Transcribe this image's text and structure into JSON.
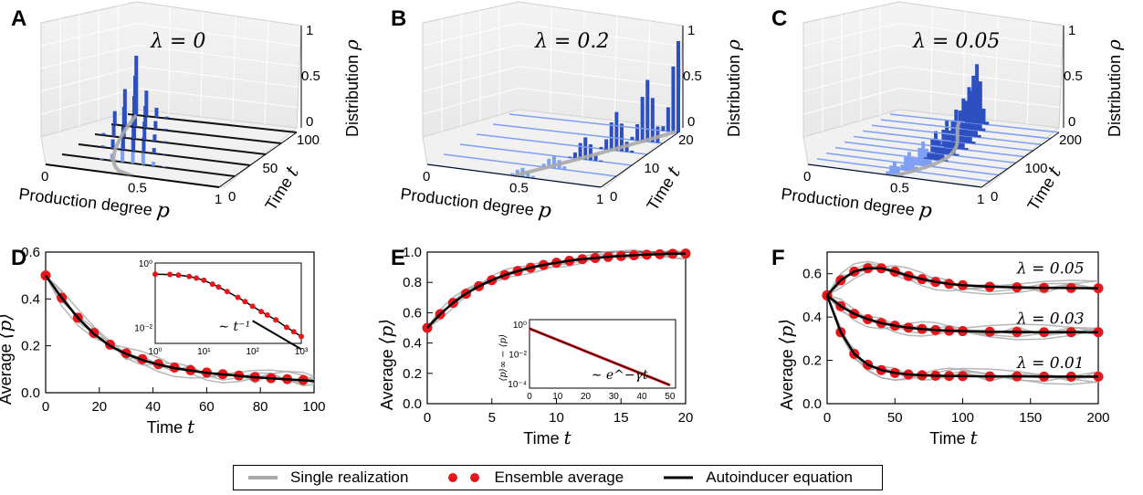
{
  "panels_3d": [
    {
      "letter": "A",
      "lambda_label": "λ = 0",
      "x_axis_label": "Production degree",
      "x_axis_symbol": "p",
      "time_axis_label": "Time",
      "time_axis_symbol": "t",
      "z_axis_label": "Distribution",
      "z_axis_symbol": "ρ",
      "x_ticks": [
        "0",
        "0.5",
        "1"
      ],
      "time_ticks": [
        "0",
        "50",
        "100"
      ],
      "z_ticks": [
        "0",
        "0.5",
        "1"
      ]
    },
    {
      "letter": "B",
      "lambda_label": "λ = 0.2",
      "x_axis_label": "Production degree",
      "x_axis_symbol": "p",
      "time_axis_label": "Time",
      "time_axis_symbol": "t",
      "z_axis_label": "Distribution",
      "z_axis_symbol": "ρ",
      "x_ticks": [
        "0",
        "0.5",
        "1"
      ],
      "time_ticks": [
        "0",
        "10",
        "20"
      ],
      "z_ticks": [
        "0",
        "0.5",
        "1"
      ]
    },
    {
      "letter": "C",
      "lambda_label": "λ = 0.05",
      "x_axis_label": "Production degree",
      "x_axis_symbol": "p",
      "time_axis_label": "Time",
      "time_axis_symbol": "t",
      "z_axis_label": "Distribution",
      "z_axis_symbol": "ρ",
      "x_ticks": [
        "0",
        "0.5",
        "1"
      ],
      "time_ticks": [
        "0",
        "100",
        "200"
      ],
      "z_ticks": [
        "0",
        "0.5",
        "1"
      ]
    }
  ],
  "chart_data": [
    {
      "panel": "D",
      "type": "line",
      "xlabel": "Time",
      "xlabel_symbol": "t",
      "ylabel": "Average",
      "ylabel_symbol": "⟨p⟩",
      "xlim": [
        0,
        100
      ],
      "ylim": [
        0.0,
        0.6
      ],
      "x_ticks": [
        "0",
        "20",
        "40",
        "60",
        "80",
        "100"
      ],
      "y_ticks": [
        "0.0",
        "0.2",
        "0.4",
        "0.6"
      ],
      "series": [
        {
          "name": "Autoinducer equation",
          "x": [
            0,
            6,
            12,
            18,
            24,
            30,
            36,
            42,
            48,
            54,
            60,
            66,
            72,
            78,
            84,
            90,
            96,
            100
          ],
          "y": [
            0.5,
            0.405,
            0.32,
            0.25,
            0.2,
            0.165,
            0.14,
            0.12,
            0.105,
            0.095,
            0.085,
            0.078,
            0.072,
            0.066,
            0.061,
            0.057,
            0.053,
            0.05
          ]
        },
        {
          "name": "Ensemble average",
          "x": [
            0,
            6,
            12,
            18,
            24,
            30,
            36,
            42,
            48,
            54,
            60,
            66,
            72,
            78,
            84,
            90,
            96
          ],
          "y": [
            0.5,
            0.405,
            0.32,
            0.255,
            0.205,
            0.168,
            0.143,
            0.122,
            0.107,
            0.096,
            0.086,
            0.079,
            0.073,
            0.067,
            0.062,
            0.058,
            0.054
          ]
        }
      ],
      "inset": {
        "x_ticks": [
          "10⁰",
          "10¹",
          "10²",
          "10³"
        ],
        "y_ticks": [
          "10⁰",
          "10⁻²"
        ],
        "annotation": "∼ t⁻¹",
        "x": [
          1,
          2,
          3,
          5,
          7,
          10,
          15,
          20,
          30,
          50,
          70,
          100,
          150,
          200,
          300,
          500,
          700,
          1000
        ],
        "y": [
          0.45,
          0.44,
          0.42,
          0.38,
          0.34,
          0.29,
          0.22,
          0.18,
          0.13,
          0.085,
          0.063,
          0.045,
          0.031,
          0.024,
          0.017,
          0.01,
          0.0073,
          0.0052
        ]
      }
    },
    {
      "panel": "E",
      "type": "line",
      "xlabel": "Time",
      "xlabel_symbol": "t",
      "ylabel": "Average",
      "ylabel_symbol": "⟨p⟩",
      "xlim": [
        0,
        20
      ],
      "ylim": [
        0.0,
        1.0
      ],
      "x_ticks": [
        "0",
        "5",
        "10",
        "15",
        "20"
      ],
      "y_ticks": [
        "0.0",
        "0.2",
        "0.4",
        "0.6",
        "0.8",
        "1.0"
      ],
      "series": [
        {
          "name": "Autoinducer equation",
          "x": [
            0,
            1,
            2,
            3,
            4,
            5,
            6,
            7,
            8,
            9,
            10,
            11,
            12,
            13,
            14,
            15,
            16,
            17,
            18,
            19,
            20
          ],
          "y": [
            0.5,
            0.59,
            0.665,
            0.725,
            0.775,
            0.815,
            0.848,
            0.875,
            0.897,
            0.915,
            0.93,
            0.943,
            0.953,
            0.961,
            0.968,
            0.974,
            0.979,
            0.983,
            0.986,
            0.989,
            0.99
          ]
        },
        {
          "name": "Ensemble average",
          "x": [
            0,
            1,
            2,
            3,
            4,
            5,
            6,
            7,
            8,
            9,
            10,
            11,
            12,
            13,
            14,
            15,
            16,
            17,
            18,
            19,
            20
          ],
          "y": [
            0.5,
            0.59,
            0.665,
            0.725,
            0.775,
            0.815,
            0.848,
            0.875,
            0.897,
            0.915,
            0.93,
            0.943,
            0.953,
            0.961,
            0.968,
            0.974,
            0.979,
            0.983,
            0.986,
            0.989,
            0.99
          ]
        }
      ],
      "inset": {
        "x_ticks": [
          "0",
          "10",
          "20",
          "30",
          "40",
          "50"
        ],
        "y_ticks": [
          "10⁰",
          "10⁻²",
          "10⁻⁴"
        ],
        "ylabel": "⟨p⟩∞ − ⟨p⟩",
        "annotation": "∼ e^−γt",
        "x": [
          0,
          5,
          10,
          15,
          20,
          25,
          30,
          35,
          40,
          45,
          50
        ],
        "log10y": [
          -0.3,
          -0.68,
          -1.06,
          -1.44,
          -1.82,
          -2.2,
          -2.58,
          -2.96,
          -3.34,
          -3.72,
          -4.1
        ]
      }
    },
    {
      "panel": "F",
      "type": "line",
      "xlabel": "Time",
      "xlabel_symbol": "t",
      "ylabel": "Average",
      "ylabel_symbol": "⟨p⟩",
      "xlim": [
        0,
        200
      ],
      "ylim": [
        0.0,
        0.7
      ],
      "x_ticks": [
        "0",
        "50",
        "100",
        "150",
        "200"
      ],
      "y_ticks": [
        "0.0",
        "0.2",
        "0.4",
        "0.6"
      ],
      "annotations": [
        "λ = 0.05",
        "λ = 0.03",
        "λ = 0.01"
      ],
      "series": [
        {
          "name": "λ = 0.05",
          "x": [
            0,
            10,
            20,
            30,
            40,
            50,
            60,
            70,
            80,
            90,
            100,
            120,
            140,
            160,
            180,
            200
          ],
          "y": [
            0.5,
            0.57,
            0.61,
            0.625,
            0.625,
            0.61,
            0.59,
            0.575,
            0.562,
            0.553,
            0.547,
            0.54,
            0.537,
            0.535,
            0.534,
            0.533
          ]
        },
        {
          "name": "λ = 0.03",
          "x": [
            0,
            10,
            20,
            30,
            40,
            50,
            60,
            70,
            80,
            90,
            100,
            120,
            140,
            160,
            180,
            200
          ],
          "y": [
            0.5,
            0.45,
            0.415,
            0.39,
            0.372,
            0.36,
            0.351,
            0.345,
            0.34,
            0.337,
            0.335,
            0.332,
            0.331,
            0.33,
            0.33,
            0.33
          ]
        },
        {
          "name": "λ = 0.01",
          "x": [
            0,
            10,
            20,
            30,
            40,
            50,
            60,
            70,
            80,
            90,
            100,
            120,
            140,
            160,
            180,
            200
          ],
          "y": [
            0.5,
            0.33,
            0.23,
            0.18,
            0.155,
            0.142,
            0.135,
            0.131,
            0.129,
            0.128,
            0.127,
            0.126,
            0.126,
            0.125,
            0.125,
            0.125
          ]
        }
      ]
    }
  ],
  "legend": {
    "single_realization": "Single realization",
    "ensemble_average": "Ensemble average",
    "autoinducer_equation": "Autoinducer equation"
  },
  "colors": {
    "single_realization": "#aaaaaa",
    "ensemble_average": "#e8151a",
    "autoinducer_equation": "#000000",
    "histogram_bar": "#2d4fbf",
    "histogram_light": "#7f9ff5"
  }
}
